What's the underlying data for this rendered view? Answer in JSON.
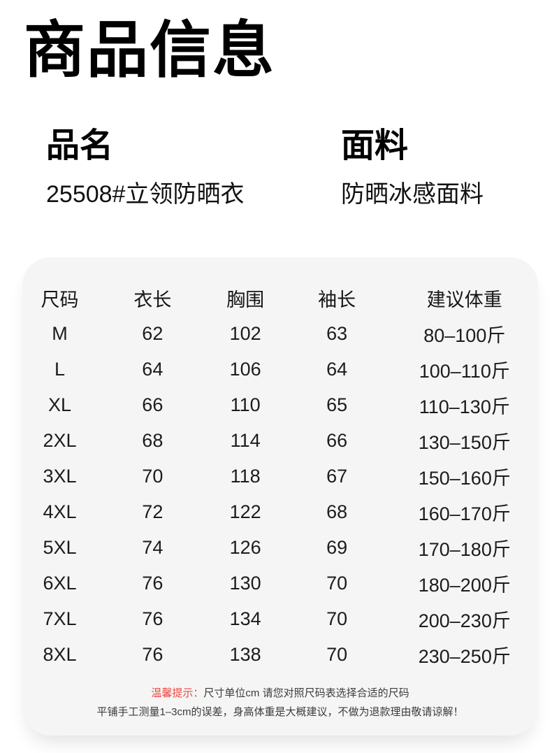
{
  "page": {
    "title": "商品信息"
  },
  "product": {
    "name_label": "品名",
    "name_value": "25508#立领防晒衣",
    "fabric_label": "面料",
    "fabric_value": "防晒冰感面料"
  },
  "size_chart": {
    "columns": [
      "尺码",
      "衣长",
      "胸围",
      "袖长",
      "建议体重"
    ],
    "rows": [
      [
        "M",
        "62",
        "102",
        "63",
        "80–100斤"
      ],
      [
        "L",
        "64",
        "106",
        "64",
        "100–110斤"
      ],
      [
        "XL",
        "66",
        "110",
        "65",
        "110–130斤"
      ],
      [
        "2XL",
        "68",
        "114",
        "66",
        "130–150斤"
      ],
      [
        "3XL",
        "70",
        "118",
        "67",
        "150–160斤"
      ],
      [
        "4XL",
        "72",
        "122",
        "68",
        "160–170斤"
      ],
      [
        "5XL",
        "74",
        "126",
        "69",
        "170–180斤"
      ],
      [
        "6XL",
        "76",
        "130",
        "70",
        "180–200斤"
      ],
      [
        "7XL",
        "76",
        "134",
        "70",
        "200–230斤"
      ],
      [
        "8XL",
        "76",
        "138",
        "70",
        "230–250斤"
      ]
    ]
  },
  "notes": {
    "tip_label": "温馨提示：",
    "tip_text": "尺寸单位cm 请您对照尺码表选择合适的尺码",
    "disclaimer": "平铺手工测量1–3cm的误差，身高体重是大概建议，不做为退款理由敬请谅解！"
  },
  "colors": {
    "tip_red": "#ee4742",
    "panel_bg": "#f5f5f5",
    "text_dark": "#1c1c1c"
  }
}
